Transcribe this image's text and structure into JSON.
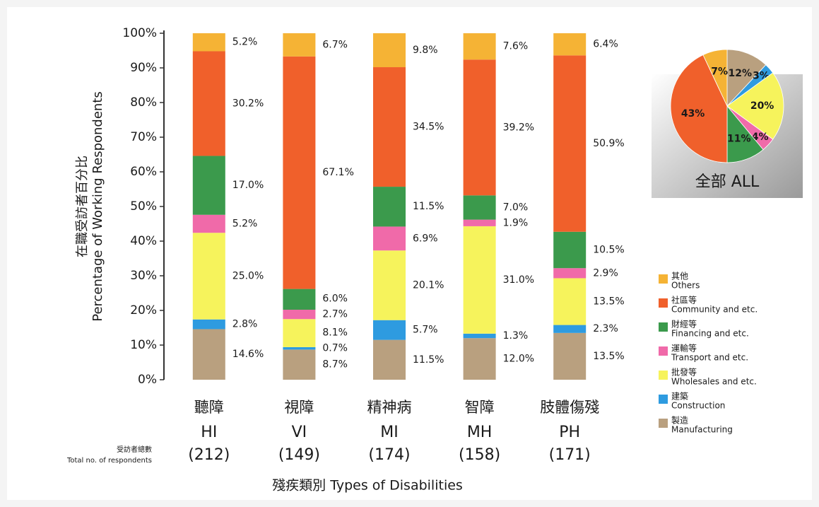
{
  "chart_data": [
    {
      "type": "stacked-bar",
      "y_label_zh": "在職受訪者百分比",
      "y_label": "Percentage of Working Respondents",
      "x_label": "殘疾類別 Types of Disabilities",
      "respondents_label_zh": "受訪者總數",
      "respondents_label": "Total no. of respondents",
      "categories_zh": [
        "聽障",
        "視障",
        "精神病",
        "智障",
        "肢體傷殘"
      ],
      "categories": [
        "HI",
        "VI",
        "MI",
        "MH",
        "PH"
      ],
      "respondent_counts": [
        212,
        149,
        174,
        158,
        171
      ],
      "respondent_count_labels": [
        "(212)",
        "(149)",
        "(174)",
        "(158)",
        "(171)"
      ],
      "ylim": [
        0,
        100
      ],
      "yticks": [
        {
          "value": 0,
          "label": "0%"
        },
        {
          "value": 10,
          "label": "10%"
        },
        {
          "value": 20,
          "label": "20%"
        },
        {
          "value": 30,
          "label": "30%"
        },
        {
          "value": 40,
          "label": "40%"
        },
        {
          "value": 50,
          "label": "50%"
        },
        {
          "value": 60,
          "label": "60%"
        },
        {
          "value": 70,
          "label": "70%"
        },
        {
          "value": 80,
          "label": "80%"
        },
        {
          "value": 90,
          "label": "90%"
        },
        {
          "value": 100,
          "label": "100%"
        }
      ],
      "series": [
        {
          "name": "Manufacturing",
          "name_zh": "製造",
          "color": "#b9a07f",
          "values": [
            14.6,
            8.7,
            11.5,
            12.0,
            13.5
          ],
          "value_labels": [
            "14.6%",
            "8.7%",
            "11.5%",
            "12.0%",
            "13.5%"
          ]
        },
        {
          "name": "Construction",
          "name_zh": "建築",
          "color": "#2e9be0",
          "values": [
            2.8,
            0.7,
            5.7,
            1.3,
            2.3
          ],
          "value_labels": [
            "2.8%",
            "0.7%",
            "5.7%",
            "1.3%",
            "2.3%"
          ]
        },
        {
          "name": "Wholesales and etc.",
          "name_zh": "批發等",
          "color": "#f6f35c",
          "values": [
            25.0,
            8.1,
            20.1,
            31.0,
            13.5
          ],
          "value_labels": [
            "25.0%",
            "8.1%",
            "20.1%",
            "31.0%",
            "13.5%"
          ]
        },
        {
          "name": "Transport and etc.",
          "name_zh": "運輸等",
          "color": "#f06aa9",
          "values": [
            5.2,
            2.7,
            6.9,
            1.9,
            2.9
          ],
          "value_labels": [
            "5.2%",
            "2.7%",
            "6.9%",
            "1.9%",
            "2.9%"
          ]
        },
        {
          "name": "Financing and etc.",
          "name_zh": "財經等",
          "color": "#3b9a4c",
          "values": [
            17.0,
            6.0,
            11.5,
            7.0,
            10.5
          ],
          "value_labels": [
            "17.0%",
            "6.0%",
            "11.5%",
            "7.0%",
            "10.5%"
          ]
        },
        {
          "name": "Community and etc.",
          "name_zh": "社區等",
          "color": "#f0602b",
          "values": [
            30.2,
            67.1,
            34.5,
            39.2,
            50.9
          ],
          "value_labels": [
            "30.2%",
            "67.1%",
            "34.5%",
            "39.2%",
            "50.9%"
          ]
        },
        {
          "name": "Others",
          "name_zh": "其他",
          "color": "#f5b335",
          "values": [
            5.2,
            6.7,
            9.8,
            7.6,
            6.4
          ],
          "value_labels": [
            "5.2%",
            "6.7%",
            "9.8%",
            "7.6%",
            "6.4%"
          ]
        }
      ]
    },
    {
      "type": "pie",
      "title": "全部 ALL",
      "categories": [
        "Manufacturing",
        "Construction",
        "Wholesales and etc.",
        "Transport and etc.",
        "Financing and etc.",
        "Community and etc.",
        "Others"
      ],
      "values": [
        12,
        3,
        20,
        4,
        11,
        43,
        7
      ],
      "value_labels": [
        "12%",
        "3%",
        "20%",
        "4%",
        "11%",
        "43%",
        "7%"
      ],
      "colors": [
        "#b9a07f",
        "#2e9be0",
        "#f6f35c",
        "#f06aa9",
        "#3b9a4c",
        "#f0602b",
        "#f5b335"
      ]
    }
  ]
}
